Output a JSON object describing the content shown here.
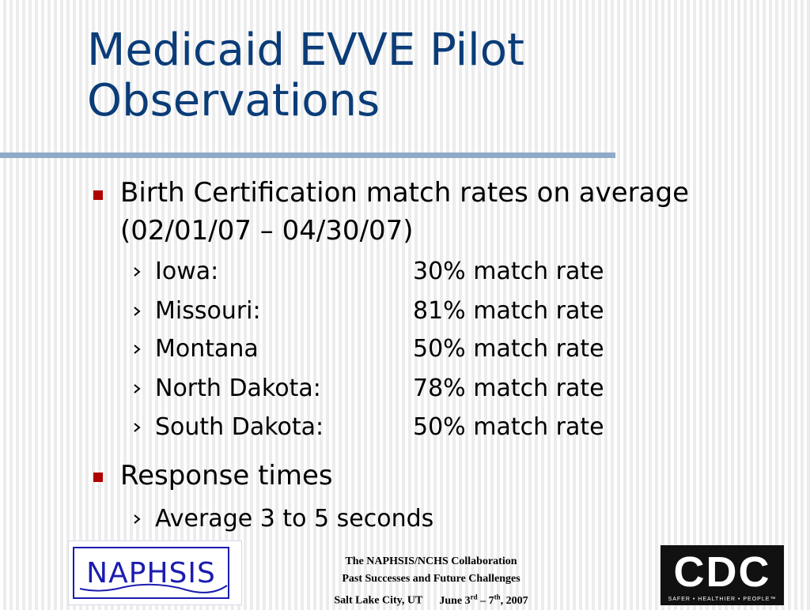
{
  "slide": {
    "title_line1": "Medicaid EVVE Pilot",
    "title_line2": "Observations"
  },
  "bullets": [
    {
      "line1": "Birth Certification match rates on average",
      "line2": "(02/01/07 – 04/30/07)",
      "subitems": [
        {
          "label": "Iowa:",
          "value": "30% match rate"
        },
        {
          "label": "Missouri:",
          "value": "81% match rate"
        },
        {
          "label": "Montana",
          "value": "50% match rate"
        },
        {
          "label": "North Dakota:",
          "value": "78% match rate"
        },
        {
          "label": "South Dakota:",
          "value": "50% match rate"
        }
      ]
    },
    {
      "line1": "Response times",
      "subitems": [
        {
          "label": "Average 3 to 5 seconds"
        }
      ]
    }
  ],
  "footer": {
    "line1": "The NAPHSIS/NCHS Collaboration",
    "line2": "Past Successes and Future Challenges",
    "line3_location": "Salt Lake City, UT",
    "line3_date_prefix": "June 3",
    "line3_date_sup1": "rd",
    "line3_date_mid": " – 7",
    "line3_date_sup2": "th",
    "line3_date_suffix": ", 2007"
  },
  "logos": {
    "naphsis_text": "NAPHSIS",
    "cdc_text": "CDC",
    "cdc_tagline": "SAFER • HEALTHIER • PEOPLE™"
  },
  "colors": {
    "title": "#0a3c78",
    "bullet": "#b00000",
    "rule": "#8fa9c8",
    "naphsis": "#1c1cb0"
  }
}
